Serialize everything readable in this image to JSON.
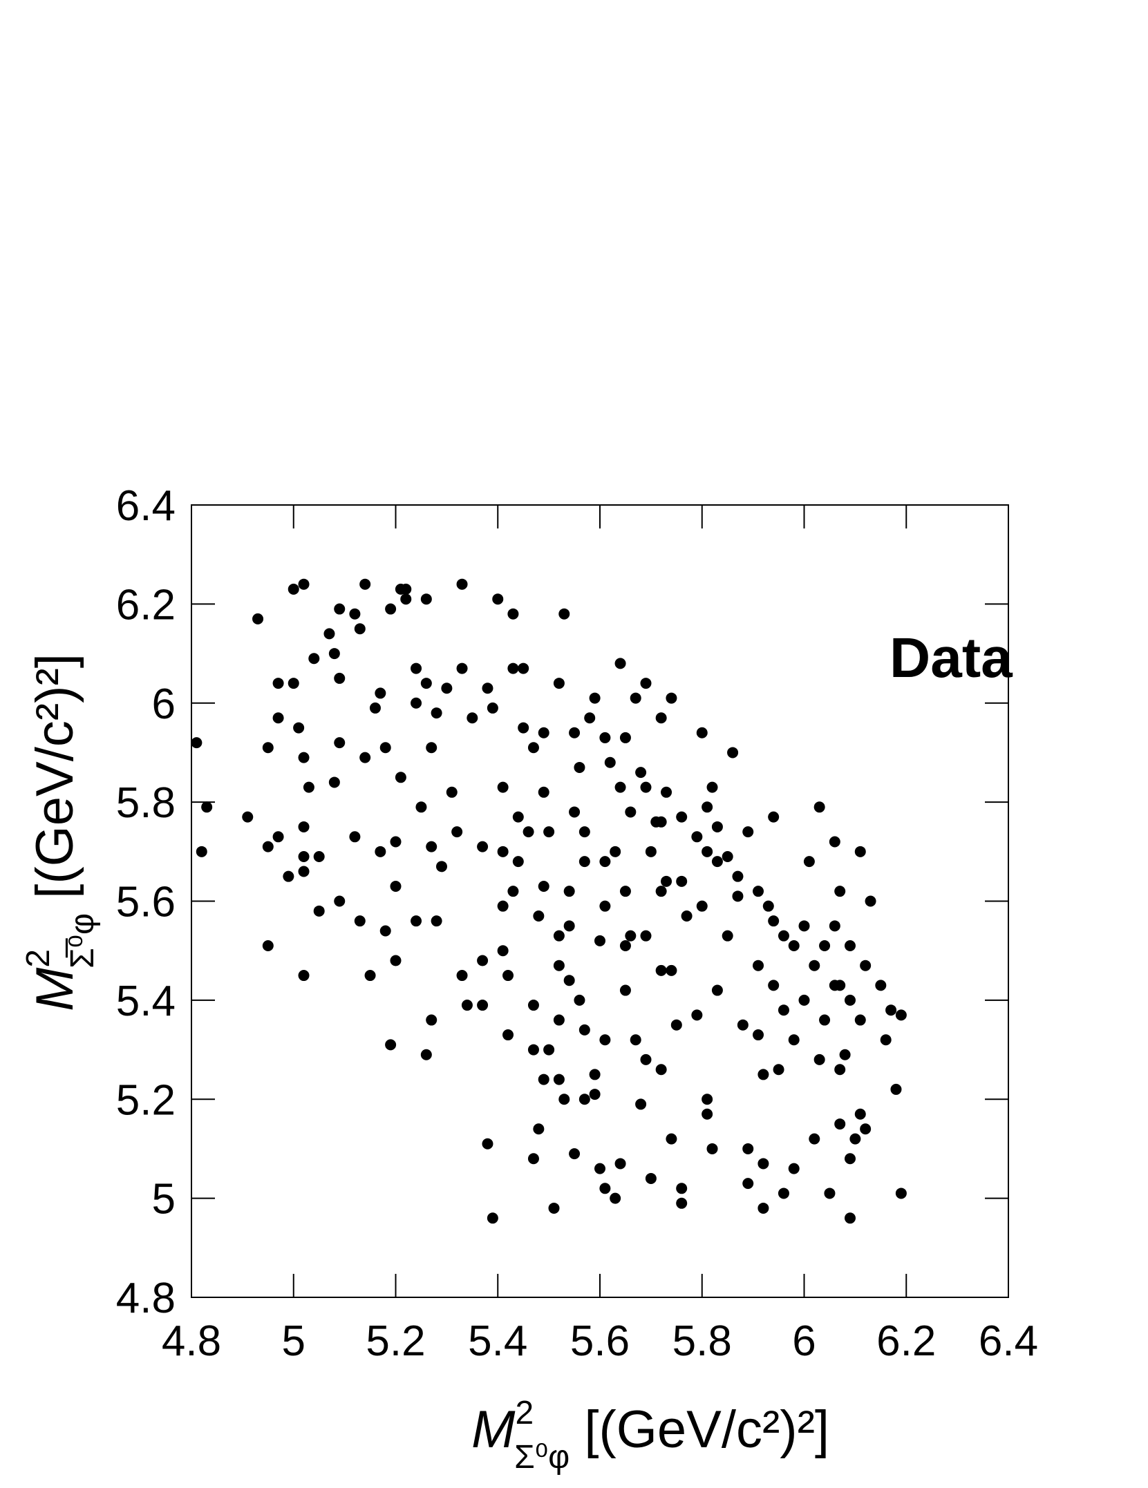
{
  "chart_data": {
    "type": "scatter",
    "annotation": "Data",
    "xlabel": {
      "main": "M",
      "sup": "2",
      "sub": "Σ⁰φ",
      "unit": " [(GeV/c²)²]"
    },
    "ylabel": {
      "main": "M",
      "sup": "2",
      "sub": "Σ̅⁰φ",
      "unit": " [(GeV/c²)²]"
    },
    "xlim": [
      4.8,
      6.4
    ],
    "ylim": [
      4.8,
      6.4
    ],
    "xticks": [
      4.8,
      5,
      5.2,
      5.4,
      5.6,
      5.8,
      6,
      6.2,
      6.4
    ],
    "yticks": [
      4.8,
      5,
      5.2,
      5.4,
      5.6,
      5.8,
      6,
      6.2,
      6.4
    ],
    "color": "#000000",
    "x": [
      4.81,
      4.82,
      4.83,
      4.91,
      4.93,
      4.95,
      4.95,
      4.95,
      4.97,
      4.97,
      4.97,
      4.99,
      5.0,
      5.0,
      5.02,
      5.01,
      5.02,
      5.02,
      5.02,
      5.02,
      5.02,
      5.03,
      5.04,
      5.05,
      5.05,
      5.07,
      5.08,
      5.08,
      5.09,
      5.09,
      5.09,
      5.09,
      5.12,
      5.12,
      5.13,
      5.13,
      5.14,
      5.14,
      5.15,
      5.16,
      5.17,
      5.17,
      5.18,
      5.18,
      5.19,
      5.19,
      5.2,
      5.2,
      5.2,
      5.21,
      5.21,
      5.22,
      5.22,
      5.24,
      5.24,
      5.24,
      5.25,
      5.26,
      5.26,
      5.26,
      5.27,
      5.27,
      5.27,
      5.28,
      5.28,
      5.29,
      5.3,
      5.31,
      5.32,
      5.33,
      5.33,
      5.33,
      5.34,
      5.35,
      5.37,
      5.37,
      5.37,
      5.38,
      5.39,
      5.38,
      5.39,
      5.4,
      5.41,
      5.41,
      5.41,
      5.42,
      5.43,
      5.43,
      5.42,
      5.43,
      5.44,
      5.45,
      5.45,
      5.47,
      5.47,
      5.47,
      5.48,
      5.48,
      5.49,
      5.49,
      5.49,
      5.5,
      5.51,
      5.52,
      5.52,
      5.52,
      5.53,
      5.53,
      5.54,
      5.54,
      5.55,
      5.55,
      5.57,
      5.57,
      5.57,
      5.58,
      5.59,
      5.59,
      5.6,
      5.6,
      5.61,
      5.61,
      5.62,
      5.63,
      5.64,
      5.64,
      5.65,
      5.65,
      5.66,
      5.67,
      5.68,
      5.69,
      5.69,
      5.7,
      5.72,
      5.72,
      5.73,
      5.74,
      5.74,
      5.74,
      5.75,
      5.76,
      5.76,
      5.77,
      5.79,
      5.8,
      5.81,
      5.81,
      5.82,
      5.83,
      5.85,
      5.86,
      5.88,
      5.89,
      5.89,
      5.91,
      5.92,
      5.92,
      5.92,
      5.94,
      5.95,
      5.96,
      5.98,
      6.0,
      6.01,
      6.02,
      6.03,
      6.03,
      6.05,
      6.06,
      6.07,
      6.07,
      6.07,
      6.08,
      6.09,
      6.09,
      6.1,
      6.11,
      6.11,
      6.12,
      6.13,
      6.15,
      6.16,
      6.17,
      6.18,
      6.19,
      6.19,
      5.47,
      5.49,
      5.52,
      5.55,
      5.56,
      5.59,
      5.61,
      5.64,
      5.66,
      5.68,
      5.69,
      5.71,
      5.73,
      5.76,
      5.79,
      5.81,
      5.82,
      5.83,
      5.85,
      5.87,
      5.89,
      5.91,
      5.93,
      5.94,
      5.96,
      5.98,
      6.0,
      6.02,
      6.04,
      6.06,
      6.07,
      6.09,
      6.12,
      5.72,
      5.63,
      5.57,
      5.46,
      5.44,
      5.41,
      5.5,
      5.54,
      5.61,
      5.65,
      5.69,
      5.76,
      5.8,
      5.83,
      5.87,
      5.91,
      5.94,
      5.96,
      5.98,
      6.04,
      6.06,
      6.09,
      6.11,
      5.52,
      5.56,
      5.61,
      5.72,
      5.7,
      5.65,
      5.67,
      5.72,
      5.81
    ],
    "y": [
      5.92,
      5.7,
      5.79,
      5.77,
      6.17,
      5.91,
      5.51,
      5.71,
      6.04,
      5.97,
      5.73,
      5.65,
      6.04,
      6.23,
      6.24,
      5.95,
      5.89,
      5.45,
      5.75,
      5.66,
      5.69,
      5.83,
      6.09,
      5.69,
      5.58,
      6.14,
      5.84,
      6.1,
      5.92,
      6.19,
      6.05,
      5.6,
      5.73,
      6.18,
      6.15,
      5.56,
      6.24,
      5.89,
      5.45,
      5.99,
      6.02,
      5.7,
      5.54,
      5.91,
      5.31,
      6.19,
      5.72,
      5.48,
      5.63,
      6.23,
      5.85,
      6.21,
      6.23,
      6.07,
      5.56,
      6.0,
      5.79,
      6.04,
      5.29,
      6.21,
      5.91,
      5.71,
      5.36,
      5.56,
      5.98,
      5.67,
      6.03,
      5.82,
      5.74,
      6.24,
      6.07,
      5.45,
      5.39,
      5.97,
      5.71,
      5.48,
      5.39,
      5.11,
      4.96,
      6.03,
      5.99,
      6.21,
      5.7,
      5.5,
      5.83,
      5.45,
      6.18,
      6.07,
      5.33,
      5.62,
      5.77,
      6.07,
      5.95,
      5.08,
      5.39,
      5.3,
      5.57,
      5.14,
      5.82,
      5.63,
      5.24,
      5.3,
      4.98,
      5.24,
      5.53,
      5.36,
      6.18,
      5.2,
      5.62,
      5.44,
      5.78,
      5.09,
      5.34,
      5.2,
      5.68,
      5.97,
      5.25,
      5.21,
      5.52,
      5.06,
      5.02,
      5.68,
      5.88,
      5.0,
      5.07,
      6.08,
      5.42,
      5.62,
      5.53,
      5.32,
      5.19,
      6.04,
      5.28,
      5.04,
      5.46,
      5.26,
      5.64,
      6.01,
      5.46,
      5.12,
      5.35,
      4.99,
      5.02,
      5.57,
      5.37,
      5.94,
      5.2,
      5.17,
      5.1,
      5.42,
      5.53,
      5.9,
      5.35,
      5.1,
      5.03,
      5.33,
      5.25,
      4.98,
      5.07,
      5.77,
      5.26,
      5.01,
      5.06,
      5.4,
      5.68,
      5.12,
      5.28,
      5.79,
      5.01,
      5.72,
      5.62,
      5.26,
      5.15,
      5.29,
      4.96,
      5.08,
      5.12,
      5.17,
      5.7,
      5.14,
      5.6,
      5.43,
      5.32,
      5.38,
      5.22,
      5.37,
      5.01,
      5.91,
      5.94,
      6.04,
      5.94,
      5.87,
      6.01,
      5.93,
      5.83,
      5.78,
      5.86,
      5.83,
      5.76,
      5.82,
      5.77,
      5.73,
      5.79,
      5.83,
      5.75,
      5.69,
      5.65,
      5.74,
      5.62,
      5.59,
      5.56,
      5.53,
      5.51,
      5.55,
      5.47,
      5.51,
      5.55,
      5.43,
      5.51,
      5.47,
      5.76,
      5.7,
      5.74,
      5.74,
      5.68,
      5.59,
      5.74,
      5.55,
      5.59,
      5.51,
      5.53,
      5.64,
      5.59,
      5.68,
      5.61,
      5.47,
      5.43,
      5.38,
      5.32,
      5.36,
      5.43,
      5.4,
      5.36,
      5.47,
      5.4,
      5.32,
      5.62,
      5.7,
      5.93,
      6.01,
      5.97,
      5.7
    ]
  }
}
